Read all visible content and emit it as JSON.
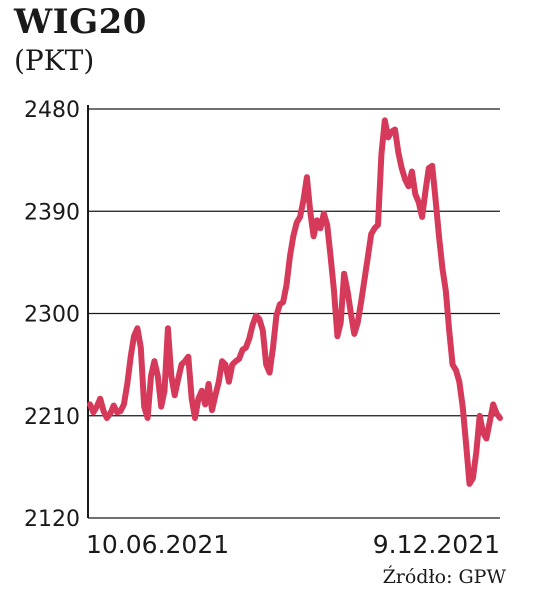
{
  "chart_data": {
    "type": "line",
    "title": "WIG20",
    "subtitle": "(PKT)",
    "source": "Źródło: GPW",
    "ylim": [
      2120,
      2480
    ],
    "yticks": [
      "2480",
      "2390",
      "2300",
      "2210",
      "2120"
    ],
    "ytick_values": [
      2480,
      2390,
      2300,
      2210,
      2120
    ],
    "x_labels": [
      "10.06.2021",
      "9.12.2021"
    ],
    "grid": true,
    "line_color": "#d63a5a",
    "series": [
      {
        "values": [
          2220,
          2213,
          2218,
          2225,
          2214,
          2208,
          2212,
          2219,
          2213,
          2214,
          2220,
          2238,
          2262,
          2280,
          2287,
          2270,
          2218,
          2208,
          2245,
          2258,
          2245,
          2218,
          2232,
          2287,
          2245,
          2228,
          2242,
          2255,
          2258,
          2262,
          2225,
          2208,
          2225,
          2232,
          2220,
          2238,
          2215,
          2228,
          2240,
          2258,
          2255,
          2240,
          2255,
          2258,
          2260,
          2268,
          2270,
          2278,
          2290,
          2298,
          2295,
          2285,
          2255,
          2248,
          2270,
          2298,
          2308,
          2310,
          2325,
          2350,
          2368,
          2380,
          2385,
          2400,
          2420,
          2390,
          2368,
          2382,
          2375,
          2388,
          2378,
          2350,
          2320,
          2280,
          2292,
          2335,
          2320,
          2300,
          2282,
          2292,
          2310,
          2330,
          2350,
          2370,
          2375,
          2378,
          2440,
          2470,
          2455,
          2460,
          2462,
          2442,
          2428,
          2418,
          2412,
          2425,
          2405,
          2398,
          2385,
          2408,
          2428,
          2430,
          2400,
          2368,
          2340,
          2320,
          2285,
          2255,
          2250,
          2240,
          2218,
          2185,
          2150,
          2155,
          2178,
          2210,
          2195,
          2190,
          2205,
          2220,
          2212,
          2208
        ]
      }
    ]
  }
}
